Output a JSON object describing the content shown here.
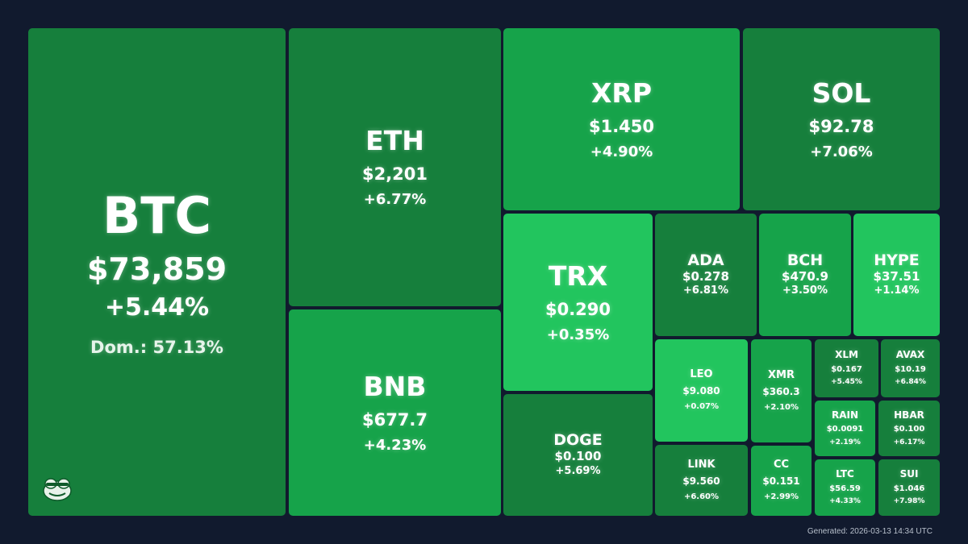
{
  "colors": {
    "background": "#111a2e",
    "tile_dark": "#167f3c",
    "tile_mid": "#16a34a",
    "tile_light": "#22c55e"
  },
  "logo_icon": "frog-face-icon",
  "tiles": {
    "btc": {
      "symbol": "BTC",
      "price": "$73,859",
      "change": "+5.44%",
      "dominance": "Dom.: 57.13%"
    },
    "eth": {
      "symbol": "ETH",
      "price": "$2,201",
      "change": "+6.77%"
    },
    "bnb": {
      "symbol": "BNB",
      "price": "$677.7",
      "change": "+4.23%"
    },
    "xrp": {
      "symbol": "XRP",
      "price": "$1.450",
      "change": "+4.90%"
    },
    "sol": {
      "symbol": "SOL",
      "price": "$92.78",
      "change": "+7.06%"
    },
    "trx": {
      "symbol": "TRX",
      "price": "$0.290",
      "change": "+0.35%"
    },
    "doge": {
      "symbol": "DOGE",
      "price": "$0.100",
      "change": "+5.69%"
    },
    "ada": {
      "symbol": "ADA",
      "price": "$0.278",
      "change": "+6.81%"
    },
    "bch": {
      "symbol": "BCH",
      "price": "$470.9",
      "change": "+3.50%"
    },
    "hype": {
      "symbol": "HYPE",
      "price": "$37.51",
      "change": "+1.14%"
    },
    "leo": {
      "symbol": "LEO",
      "price": "$9.080",
      "change": "+0.07%"
    },
    "link": {
      "symbol": "LINK",
      "price": "$9.560",
      "change": "+6.60%"
    },
    "xmr": {
      "symbol": "XMR",
      "price": "$360.3",
      "change": "+2.10%"
    },
    "cc": {
      "symbol": "CC",
      "price": "$0.151",
      "change": "+2.99%"
    },
    "xlm": {
      "symbol": "XLM",
      "price": "$0.167",
      "change": "+5.45%"
    },
    "avax": {
      "symbol": "AVAX",
      "price": "$10.19",
      "change": "+6.84%"
    },
    "rain": {
      "symbol": "RAIN",
      "price": "$0.0091",
      "change": "+2.19%"
    },
    "hbar": {
      "symbol": "HBAR",
      "price": "$0.100",
      "change": "+6.17%"
    },
    "ltc": {
      "symbol": "LTC",
      "price": "$56.59",
      "change": "+4.33%"
    },
    "sui": {
      "symbol": "SUI",
      "price": "$1.046",
      "change": "+7.98%"
    }
  },
  "footer": {
    "generated": "Generated: 2026-03-13 14:34 UTC"
  }
}
